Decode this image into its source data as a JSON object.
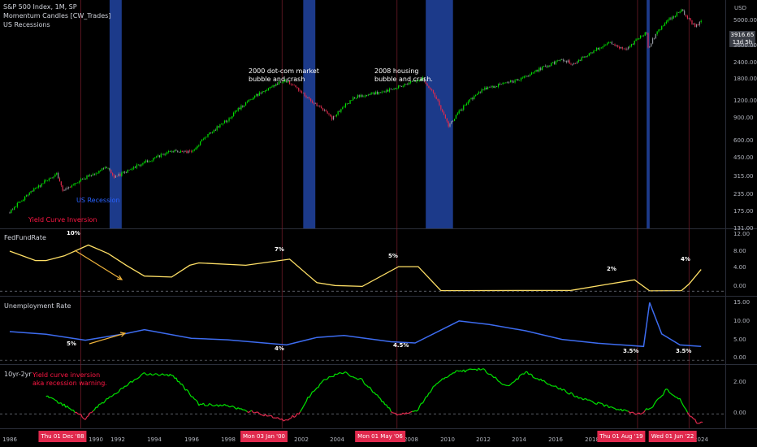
{
  "legend": {
    "line1": "S&P 500 Index, 1M, SP",
    "line2": "Momentum Candles [CW_Trades]",
    "line3": "US Recessions"
  },
  "price_axis": {
    "currency": "USD",
    "last_price": "3916.65",
    "countdown": "13d 5h",
    "ticks": [
      "5000.00",
      "3600.00",
      "2400.00",
      "1800.00",
      "1200.00",
      "900.00",
      "600.00",
      "450.00",
      "315.00",
      "235.00",
      "175.00",
      "131.00"
    ]
  },
  "annotations": {
    "dotcom": [
      "2000 dot-com market",
      "bubble and crash"
    ],
    "housing": [
      "2008 housing",
      "bubble and crash."
    ],
    "us_recession": "US Recession",
    "yield_curve_inversion": "Yield Curve Inversion",
    "yc_warning": [
      "Yield curve inversion",
      "aka recession warning."
    ]
  },
  "panes": {
    "fed_title": "FedFundRate",
    "unemp_title": "Unemployment Rate",
    "spread_title": "10yr-2yr",
    "fed_ticks": [
      "12.00",
      "8.00",
      "4.00",
      "0.00"
    ],
    "unemp_ticks": [
      "15.00",
      "10.00",
      "5.00",
      "0.00"
    ],
    "spread_ticks": [
      "2.00",
      "0.00"
    ],
    "fed_labels": [
      "10%",
      "7%",
      "5%",
      "2%",
      "4%"
    ],
    "unemp_labels": [
      "5%",
      "4%",
      "4.5%",
      "3.5%",
      "3.5%"
    ]
  },
  "x_axis": {
    "years": [
      "1986",
      "1990",
      "1992",
      "1994",
      "1996",
      "1998",
      "2002",
      "2004",
      "2008",
      "2010",
      "2012",
      "2014",
      "2016",
      "2018",
      "2024"
    ],
    "date_markers": [
      "Thu 01 Dec '88",
      "Mon 03 Jan '00",
      "Mon 01 May '06",
      "Thu 01 Aug '19",
      "Wed 01 Jun '22"
    ]
  },
  "colors": {
    "recession_band": "#1c3a8a",
    "bull": "#00e600",
    "bear": "#e0294d",
    "neutral": "#9598a1",
    "fed_line": "#ffe066",
    "unemp_line": "#3d6cf0",
    "spread_pos": "#00e600",
    "spread_neg": "#e0294d",
    "arrow": "#f0b43c"
  },
  "chart_data": [
    {
      "type": "line",
      "title": "S&P 500 Index, 1M, SP",
      "ylabel": "USD",
      "yscale": "log",
      "ylim": [
        131,
        5600
      ],
      "x": [
        "1985-01",
        "1987-08",
        "1987-12",
        "1990-06",
        "1990-10",
        "1994-01",
        "1995-01",
        "1997-01",
        "1998-07",
        "2000-03",
        "2001-09",
        "2002-10",
        "2004-01",
        "2006-01",
        "2007-10",
        "2009-03",
        "2011-01",
        "2013-01",
        "2015-06",
        "2016-02",
        "2018-01",
        "2018-12",
        "2020-02",
        "2020-03",
        "2021-01",
        "2022-01",
        "2022-10",
        "2023-02"
      ],
      "values": [
        170,
        320,
        240,
        360,
        300,
        470,
        460,
        780,
        1150,
        1500,
        1050,
        800,
        1130,
        1280,
        1550,
        700,
        1280,
        1500,
        2100,
        1950,
        2800,
        2450,
        3300,
        2550,
        3750,
        4700,
        3600,
        3916.65
      ],
      "recessions": [
        [
          "1990-07",
          "1991-03"
        ],
        [
          "2001-03",
          "2001-11"
        ],
        [
          "2007-12",
          "2009-06"
        ],
        [
          "2020-02",
          "2020-04"
        ]
      ],
      "annotations": [
        "2000 dot-com market bubble and crash",
        "2008 housing bubble and crash.",
        "US Recession",
        "Yield Curve Inversion"
      ],
      "last_value": 3916.65
    },
    {
      "type": "line",
      "title": "FedFundRate",
      "ylim": [
        -1,
        13
      ],
      "x": [
        "1985-01",
        "1986-06",
        "1987-01",
        "1988-01",
        "1989-05",
        "1990-06",
        "1991-06",
        "1992-06",
        "1993-12",
        "1994-12",
        "1995-06",
        "1998-01",
        "2000-06",
        "2001-12",
        "2002-12",
        "2004-06",
        "2006-06",
        "2007-07",
        "2008-10",
        "2015-12",
        "2018-01",
        "2019-06",
        "2020-04",
        "2022-01",
        "2022-06",
        "2023-02"
      ],
      "values": [
        8.5,
        6.5,
        6.5,
        7.5,
        9.8,
        8.0,
        5.5,
        3.2,
        3.0,
        5.5,
        6.0,
        5.5,
        6.8,
        1.8,
        1.2,
        1.0,
        5.2,
        5.2,
        0.1,
        0.15,
        1.5,
        2.4,
        0.05,
        0.1,
        1.5,
        4.6
      ],
      "labels": [
        "10%",
        "7%",
        "5%",
        "2%",
        "4%"
      ],
      "ticks": [
        12,
        8,
        4,
        0
      ]
    },
    {
      "type": "line",
      "title": "Unemployment Rate",
      "ylim": [
        -1,
        16
      ],
      "x": [
        "1985-01",
        "1987-01",
        "1989-03",
        "1991-06",
        "1992-06",
        "1995-01",
        "1997-01",
        "2000-04",
        "2001-12",
        "2003-06",
        "2006-01",
        "2007-05",
        "2009-10",
        "2011-06",
        "2013-06",
        "2015-06",
        "2017-06",
        "2019-12",
        "2020-04",
        "2020-12",
        "2021-12",
        "2023-02"
      ],
      "values": [
        7.3,
        6.6,
        5.1,
        6.8,
        7.8,
        5.6,
        5.2,
        3.9,
        5.8,
        6.3,
        4.7,
        4.4,
        10.0,
        9.1,
        7.5,
        5.3,
        4.3,
        3.5,
        14.7,
        6.7,
        3.9,
        3.5
      ],
      "labels": [
        "5%",
        "4%",
        "4.5%",
        "3.5%",
        "3.5%"
      ],
      "ticks": [
        15,
        10,
        5,
        0
      ]
    },
    {
      "type": "line",
      "title": "10yr-2yr",
      "ylim": [
        -0.9,
        3.0
      ],
      "x": [
        "1987-01",
        "1988-06",
        "1989-03",
        "1989-09",
        "1991-06",
        "1992-06",
        "1994-01",
        "1995-06",
        "1997-01",
        "1998-06",
        "2000-03",
        "2000-12",
        "2001-06",
        "2002-06",
        "2003-06",
        "2004-06",
        "2006-01",
        "2006-06",
        "2007-06",
        "2008-06",
        "2009-06",
        "2011-01",
        "2012-06",
        "2013-06",
        "2014-06",
        "2016-06",
        "2018-06",
        "2019-08",
        "2020-06",
        "2021-03",
        "2022-01",
        "2022-06",
        "2022-12",
        "2023-02"
      ],
      "values": [
        1.1,
        0.3,
        -0.3,
        0.3,
        1.8,
        2.5,
        2.4,
        0.6,
        0.5,
        0.1,
        -0.4,
        0.0,
        1.0,
        2.2,
        2.6,
        2.1,
        0.2,
        -0.1,
        0.2,
        1.8,
        2.6,
        2.8,
        1.7,
        2.6,
        2.0,
        1.0,
        0.3,
        -0.05,
        0.5,
        1.5,
        0.8,
        0.0,
        -0.6,
        -0.5
      ],
      "ticks": [
        2,
        0
      ],
      "annotations": [
        "Yield curve inversion aka recession warning."
      ]
    }
  ]
}
